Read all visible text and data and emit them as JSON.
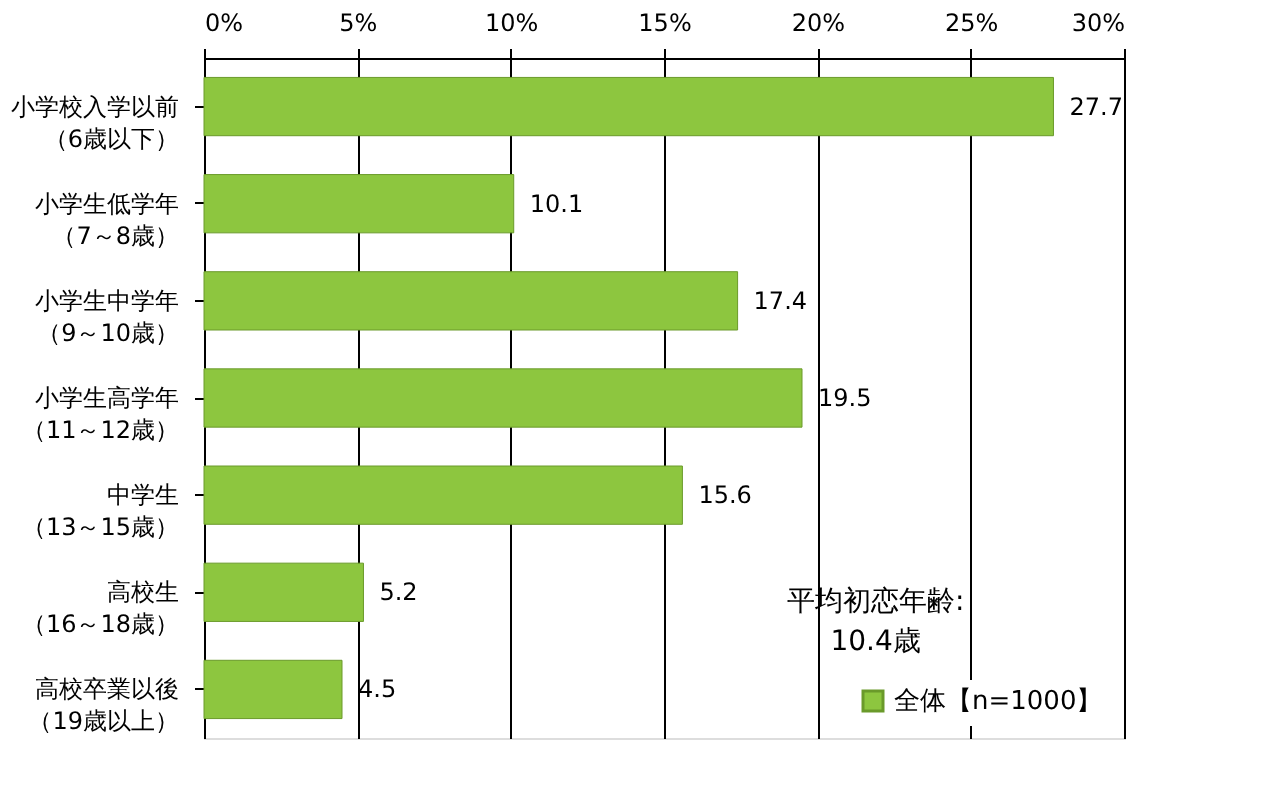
{
  "chart_data": {
    "type": "bar",
    "orientation": "horizontal",
    "categories": [
      "小学校入学以前（6歳以下）",
      "小学生低学年（7～8歳）",
      "小学生中学年（9～10歳）",
      "小学生高学年（11～12歳）",
      "中学生（13～15歳）",
      "高校生（16～18歳）",
      "高校卒業以後（19歳以上）"
    ],
    "series": [
      {
        "name": "全体【n=1000】",
        "color": "#8dc63f",
        "values": [
          27.7,
          10.1,
          17.4,
          19.5,
          15.6,
          5.2,
          4.5
        ]
      }
    ],
    "xlim": [
      0,
      30
    ],
    "xticks": [
      {
        "value": 0,
        "label": "0%"
      },
      {
        "value": 5,
        "label": "5%"
      },
      {
        "value": 10,
        "label": "10%"
      },
      {
        "value": 15,
        "label": "15%"
      },
      {
        "value": 20,
        "label": "20%"
      },
      {
        "value": 25,
        "label": "25%"
      },
      {
        "value": 30,
        "label": "30%"
      }
    ],
    "grid": "x",
    "data_labels": true,
    "legend": "bottom right",
    "annotations": [
      "平均初恋年齢:\n10.4歳"
    ]
  }
}
